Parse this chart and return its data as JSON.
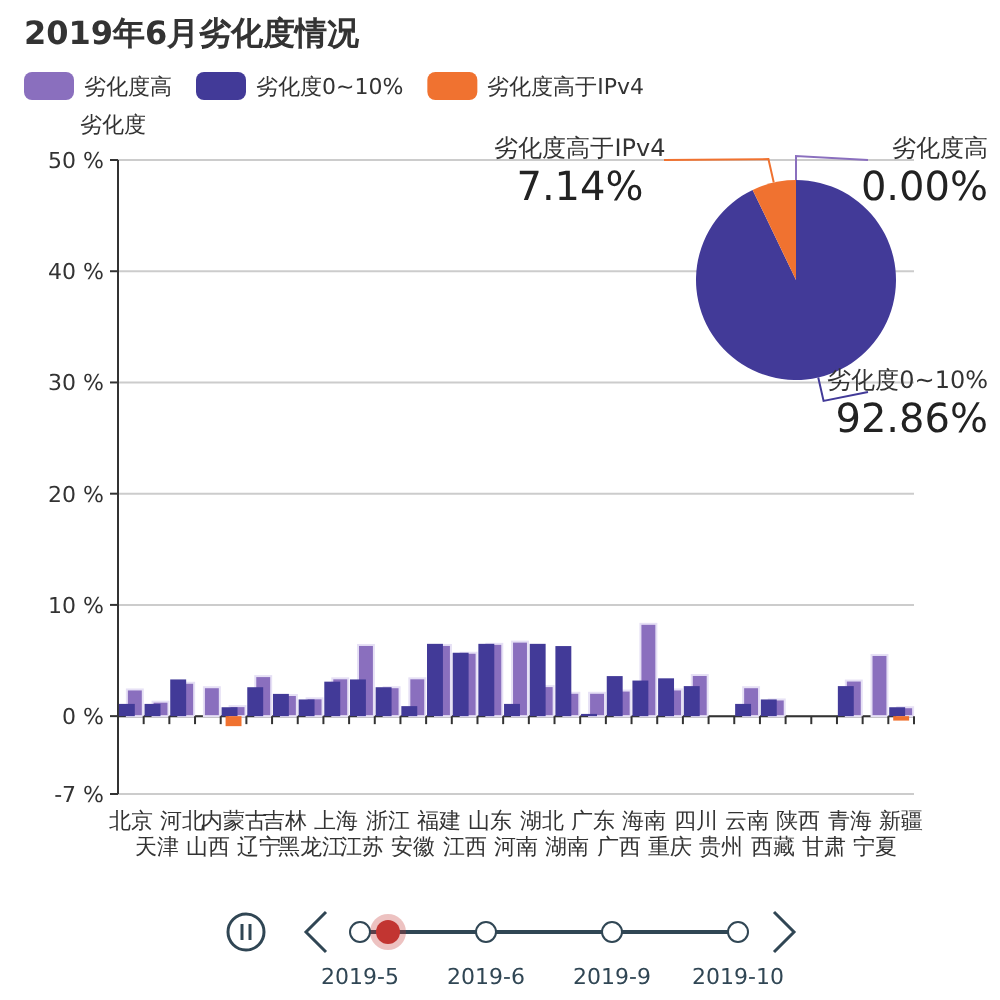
{
  "chart_data": [
    {
      "type": "bar",
      "title": "2019年6月劣化度情况",
      "ylabel": "劣化度",
      "categories": [
        "北京",
        "天津",
        "河北",
        "山西",
        "内蒙古",
        "辽宁",
        "吉林",
        "黑龙江",
        "上海",
        "江苏",
        "浙江",
        "安徽",
        "福建",
        "江西",
        "山东",
        "河南",
        "湖北",
        "湖南",
        "广东",
        "广西",
        "海南",
        "重庆",
        "四川",
        "贵州",
        "云南",
        "西藏",
        "陕西",
        "甘肃",
        "青海",
        "宁夏",
        "新疆"
      ],
      "series": [
        {
          "name": "劣化度高",
          "color": "#8a6fbe",
          "values": [
            2.4,
            1.3,
            3.0,
            2.6,
            0.9,
            3.6,
            1.9,
            1.6,
            3.4,
            6.4,
            2.6,
            3.4,
            6.4,
            5.7,
            6.5,
            6.7,
            2.7,
            2.1,
            2.1,
            2.3,
            8.3,
            2.4,
            3.7,
            0,
            2.6,
            1.5,
            0,
            0,
            3.2,
            5.5,
            0.8
          ]
        },
        {
          "name": "劣化度0~10%",
          "color": "#423a98",
          "values": [
            1.1,
            1.1,
            3.3,
            0,
            0.8,
            2.6,
            2.0,
            1.5,
            3.1,
            3.3,
            2.6,
            0.9,
            6.5,
            5.7,
            6.5,
            1.1,
            6.5,
            6.3,
            0.2,
            3.6,
            3.2,
            3.4,
            2.7,
            0,
            1.1,
            1.5,
            0,
            0,
            2.7,
            0,
            0.8
          ]
        },
        {
          "name": "劣化度高于IPv4",
          "color": "#f07230",
          "values": [
            0,
            0,
            0,
            0,
            -0.9,
            0,
            0,
            0,
            0,
            0,
            0,
            0,
            0,
            0,
            0,
            0,
            0,
            0,
            0,
            0,
            0,
            0,
            0,
            0,
            0,
            0,
            0,
            0,
            0,
            0,
            -0.4
          ]
        }
      ],
      "ylim": [
        -7,
        50
      ],
      "yticks": [
        {
          "value": -7,
          "label": "-7 %"
        },
        {
          "value": 0,
          "label": "0 %"
        },
        {
          "value": 10,
          "label": "10 %"
        },
        {
          "value": 20,
          "label": "20 %"
        },
        {
          "value": 30,
          "label": "30 %"
        },
        {
          "value": 40,
          "label": "40 %"
        },
        {
          "value": 50,
          "label": "50 %"
        }
      ],
      "grid": "y",
      "legend": "top"
    },
    {
      "type": "pie",
      "categories": [
        "劣化度高",
        "劣化度0~10%",
        "劣化度高于IPv4"
      ],
      "values": [
        0,
        92.86,
        7.14
      ],
      "colors": [
        "#8a6fbe",
        "#423a98",
        "#f07230"
      ],
      "value_labels": [
        "0.00%",
        "92.86%",
        "7.14%"
      ]
    },
    {
      "type": "other",
      "categories": [
        "2019-5",
        "2019-6",
        "2019-9",
        "2019-10"
      ]
    }
  ]
}
